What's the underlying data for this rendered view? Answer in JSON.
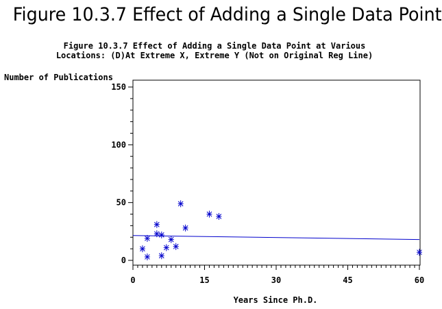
{
  "page_title": "Figure 10.3.7 Effect of Adding a Single Data Point",
  "chart_data": {
    "type": "scatter",
    "title_line1": "Figure 10.3.7 Effect of Adding a Single Data Point at Various",
    "title_line2": "Locations: (D)At Extreme X, Extreme Y (Not on Original Reg Line)",
    "xlabel": "Years Since Ph.D.",
    "ylabel": "Number of Publications",
    "xlim": [
      0,
      60
    ],
    "ylim": [
      0,
      150
    ],
    "x_ticks": [
      0,
      15,
      30,
      45,
      60
    ],
    "y_ticks": [
      0,
      50,
      100,
      150
    ],
    "grid": false,
    "marker": "*",
    "series": [
      {
        "points": [
          {
            "x": 2,
            "y": 10
          },
          {
            "x": 3,
            "y": 19
          },
          {
            "x": 3,
            "y": 3
          },
          {
            "x": 5,
            "y": 31
          },
          {
            "x": 5,
            "y": 23
          },
          {
            "x": 6,
            "y": 22
          },
          {
            "x": 6,
            "y": 4
          },
          {
            "x": 7,
            "y": 11
          },
          {
            "x": 8,
            "y": 18
          },
          {
            "x": 9,
            "y": 12
          },
          {
            "x": 10,
            "y": 49
          },
          {
            "x": 11,
            "y": 28
          },
          {
            "x": 16,
            "y": 40
          },
          {
            "x": 18,
            "y": 38
          },
          {
            "x": 60,
            "y": 7
          }
        ]
      }
    ],
    "regression_line": {
      "x": [
        0,
        60
      ],
      "y": [
        21.5,
        18
      ]
    },
    "colors": {
      "points": "#0000cc",
      "line": "#0000cc",
      "axes": "#000000"
    }
  }
}
